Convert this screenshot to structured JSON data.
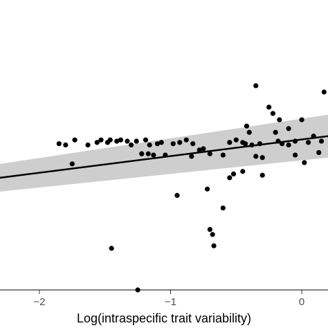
{
  "chart_data": {
    "type": "scatter",
    "xlabel": "Log(intraspecific trait variability)",
    "ylabel": "",
    "xlim": [
      -2.3,
      0.2
    ],
    "ylim": [
      -1.0,
      1.3
    ],
    "x_ticks": [
      {
        "value": -2,
        "label": "−2"
      },
      {
        "value": -1,
        "label": "−1"
      },
      {
        "value": 0,
        "label": "0"
      }
    ],
    "points": [
      {
        "x": -1.85,
        "y": 0.16
      },
      {
        "x": -1.8,
        "y": 0.15
      },
      {
        "x": -1.75,
        "y": 0.0
      },
      {
        "x": -1.73,
        "y": 0.19
      },
      {
        "x": -1.63,
        "y": 0.15
      },
      {
        "x": -1.56,
        "y": 0.17
      },
      {
        "x": -1.53,
        "y": 0.19
      },
      {
        "x": -1.48,
        "y": 0.17
      },
      {
        "x": -1.46,
        "y": 0.19
      },
      {
        "x": -1.41,
        "y": 0.18
      },
      {
        "x": -1.38,
        "y": 0.19
      },
      {
        "x": -1.33,
        "y": 0.18
      },
      {
        "x": -1.3,
        "y": 0.15
      },
      {
        "x": -1.26,
        "y": 0.18
      },
      {
        "x": -1.22,
        "y": 0.08
      },
      {
        "x": -1.19,
        "y": 0.19
      },
      {
        "x": -1.16,
        "y": 0.15
      },
      {
        "x": -1.13,
        "y": 0.07
      },
      {
        "x": -1.1,
        "y": 0.16
      },
      {
        "x": -1.07,
        "y": 0.17
      },
      {
        "x": -1.04,
        "y": 0.07
      },
      {
        "x": -0.98,
        "y": 0.16
      },
      {
        "x": -0.93,
        "y": 0.17
      },
      {
        "x": -0.88,
        "y": 0.19
      },
      {
        "x": -0.83,
        "y": 0.16
      },
      {
        "x": -0.78,
        "y": 0.11
      },
      {
        "x": -0.75,
        "y": 0.12
      },
      {
        "x": -0.7,
        "y": 0.08
      },
      {
        "x": -0.6,
        "y": 0.07
      },
      {
        "x": -0.55,
        "y": 0.17
      },
      {
        "x": -0.5,
        "y": 0.19
      },
      {
        "x": -0.45,
        "y": 0.17
      },
      {
        "x": -0.43,
        "y": 0.16
      },
      {
        "x": -0.38,
        "y": 0.15
      },
      {
        "x": -0.35,
        "y": 0.06
      },
      {
        "x": -0.32,
        "y": 0.16
      },
      {
        "x": -0.18,
        "y": 0.18
      },
      {
        "x": -0.15,
        "y": 0.16
      },
      {
        "x": -0.1,
        "y": 0.15
      },
      {
        "x": -0.05,
        "y": 0.18
      },
      {
        "x": 0.05,
        "y": 0.17
      },
      {
        "x": 0.15,
        "y": 0.18
      },
      {
        "x": -1.22,
        "y": 0.08
      },
      {
        "x": -0.95,
        "y": -0.25
      },
      {
        "x": -0.72,
        "y": -0.2
      },
      {
        "x": -0.55,
        "y": -0.11
      },
      {
        "x": -0.52,
        "y": -0.08
      },
      {
        "x": -0.45,
        "y": -0.06
      },
      {
        "x": -0.3,
        "y": -0.09
      },
      {
        "x": -0.3,
        "y": 0.05
      },
      {
        "x": -0.25,
        "y": 0.45
      },
      {
        "x": -0.17,
        "y": 0.35
      },
      {
        "x": -0.1,
        "y": 0.28
      },
      {
        "x": -0.35,
        "y": 0.62
      },
      {
        "x": -0.7,
        "y": -0.52
      },
      {
        "x": -0.68,
        "y": -0.56
      },
      {
        "x": -0.67,
        "y": -0.65
      },
      {
        "x": -0.6,
        "y": -0.35
      },
      {
        "x": -0.4,
        "y": 0.25
      },
      {
        "x": -1.45,
        "y": -0.67
      },
      {
        "x": -1.25,
        "y": -1.0
      },
      {
        "x": -0.42,
        "y": 0.3
      },
      {
        "x": 0.0,
        "y": 0.35
      },
      {
        "x": 0.09,
        "y": 0.22
      },
      {
        "x": 0.13,
        "y": 0.09
      },
      {
        "x": 0.17,
        "y": 0.57
      },
      {
        "x": -0.22,
        "y": 0.4
      },
      {
        "x": -1.17,
        "y": 0.08
      },
      {
        "x": -0.84,
        "y": 0.06
      },
      {
        "x": -0.05,
        "y": 0.07
      },
      {
        "x": 0.02,
        "y": 0.01
      },
      {
        "x": -0.2,
        "y": 0.25
      }
    ],
    "fit": {
      "x": [
        -2.3,
        0.2
      ],
      "y": [
        -0.11,
        0.22
      ]
    },
    "ci": {
      "x": [
        -2.3,
        0.2
      ],
      "upper": [
        0.0,
        0.39
      ],
      "lower": [
        -0.22,
        0.05
      ]
    },
    "grid": false
  }
}
